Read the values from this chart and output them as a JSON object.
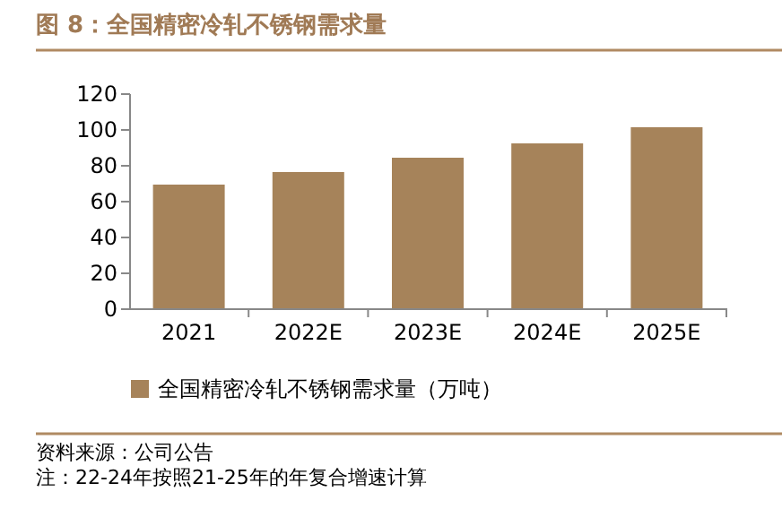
{
  "chart_data": {
    "type": "bar",
    "title": "图 8：全国精密冷轧不锈钢需求量",
    "categories": [
      "2021",
      "2022E",
      "2023E",
      "2024E",
      "2025E"
    ],
    "series": [
      {
        "name": "全国精密冷轧不锈钢需求量（万吨）",
        "color": "#a6835a",
        "values": [
          69,
          76,
          84,
          92,
          101
        ]
      }
    ],
    "ylim": [
      0,
      120
    ],
    "yticks": [
      0,
      20,
      40,
      60,
      80,
      100,
      120
    ],
    "grid": false,
    "legend": "bottom",
    "annotations": [
      "资料来源：公司公告",
      "注：22-24年按照21-25年的年复合增速计算"
    ]
  }
}
